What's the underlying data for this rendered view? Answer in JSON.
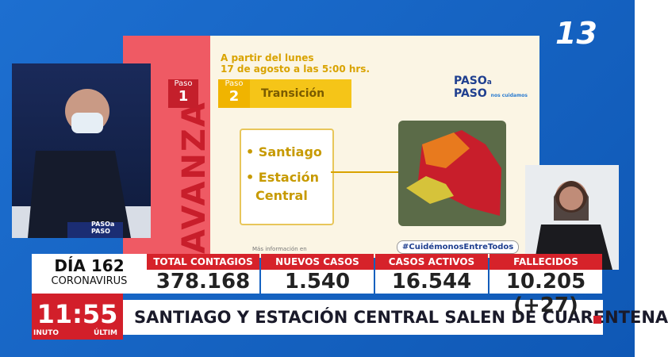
{
  "channel_logo": "13",
  "slide": {
    "intro": "A partir del lunes",
    "date": "17 de agosto a las 5:00 hrs.",
    "steps": [
      {
        "label": "Paso",
        "number": "1"
      },
      {
        "label": "Paso",
        "number": "2",
        "name": "Transición"
      }
    ],
    "side_text": "AVANZA",
    "places": [
      "• Santiago",
      "• Estación",
      "Central"
    ],
    "brand": {
      "line1": "PASO",
      "sub1": "a",
      "line2": "PASO",
      "sub2": "nos cuidamos"
    },
    "hashtag": "#CuidémonosEntreTodos",
    "more_info": "Más información en"
  },
  "podium": {
    "line1": "PASOa",
    "line2": "PASO"
  },
  "ticker": {
    "day": "DÍA 162",
    "topic": "CORONAVIRUS",
    "stats": [
      {
        "label": "TOTAL CONTAGIOS",
        "value": "378.168"
      },
      {
        "label": "NUEVOS CASOS",
        "value": "1.540"
      },
      {
        "label": "CASOS ACTIVOS",
        "value": "16.544"
      },
      {
        "label": "FALLECIDOS",
        "value": "10.205 (+27)"
      }
    ],
    "time": "11:55",
    "headline": "SANTIAGO Y ESTACIÓN CENTRAL SALEN DE CUARENTENA",
    "footer_left": "INUTO",
    "footer_right": "ÚLTIM"
  }
}
